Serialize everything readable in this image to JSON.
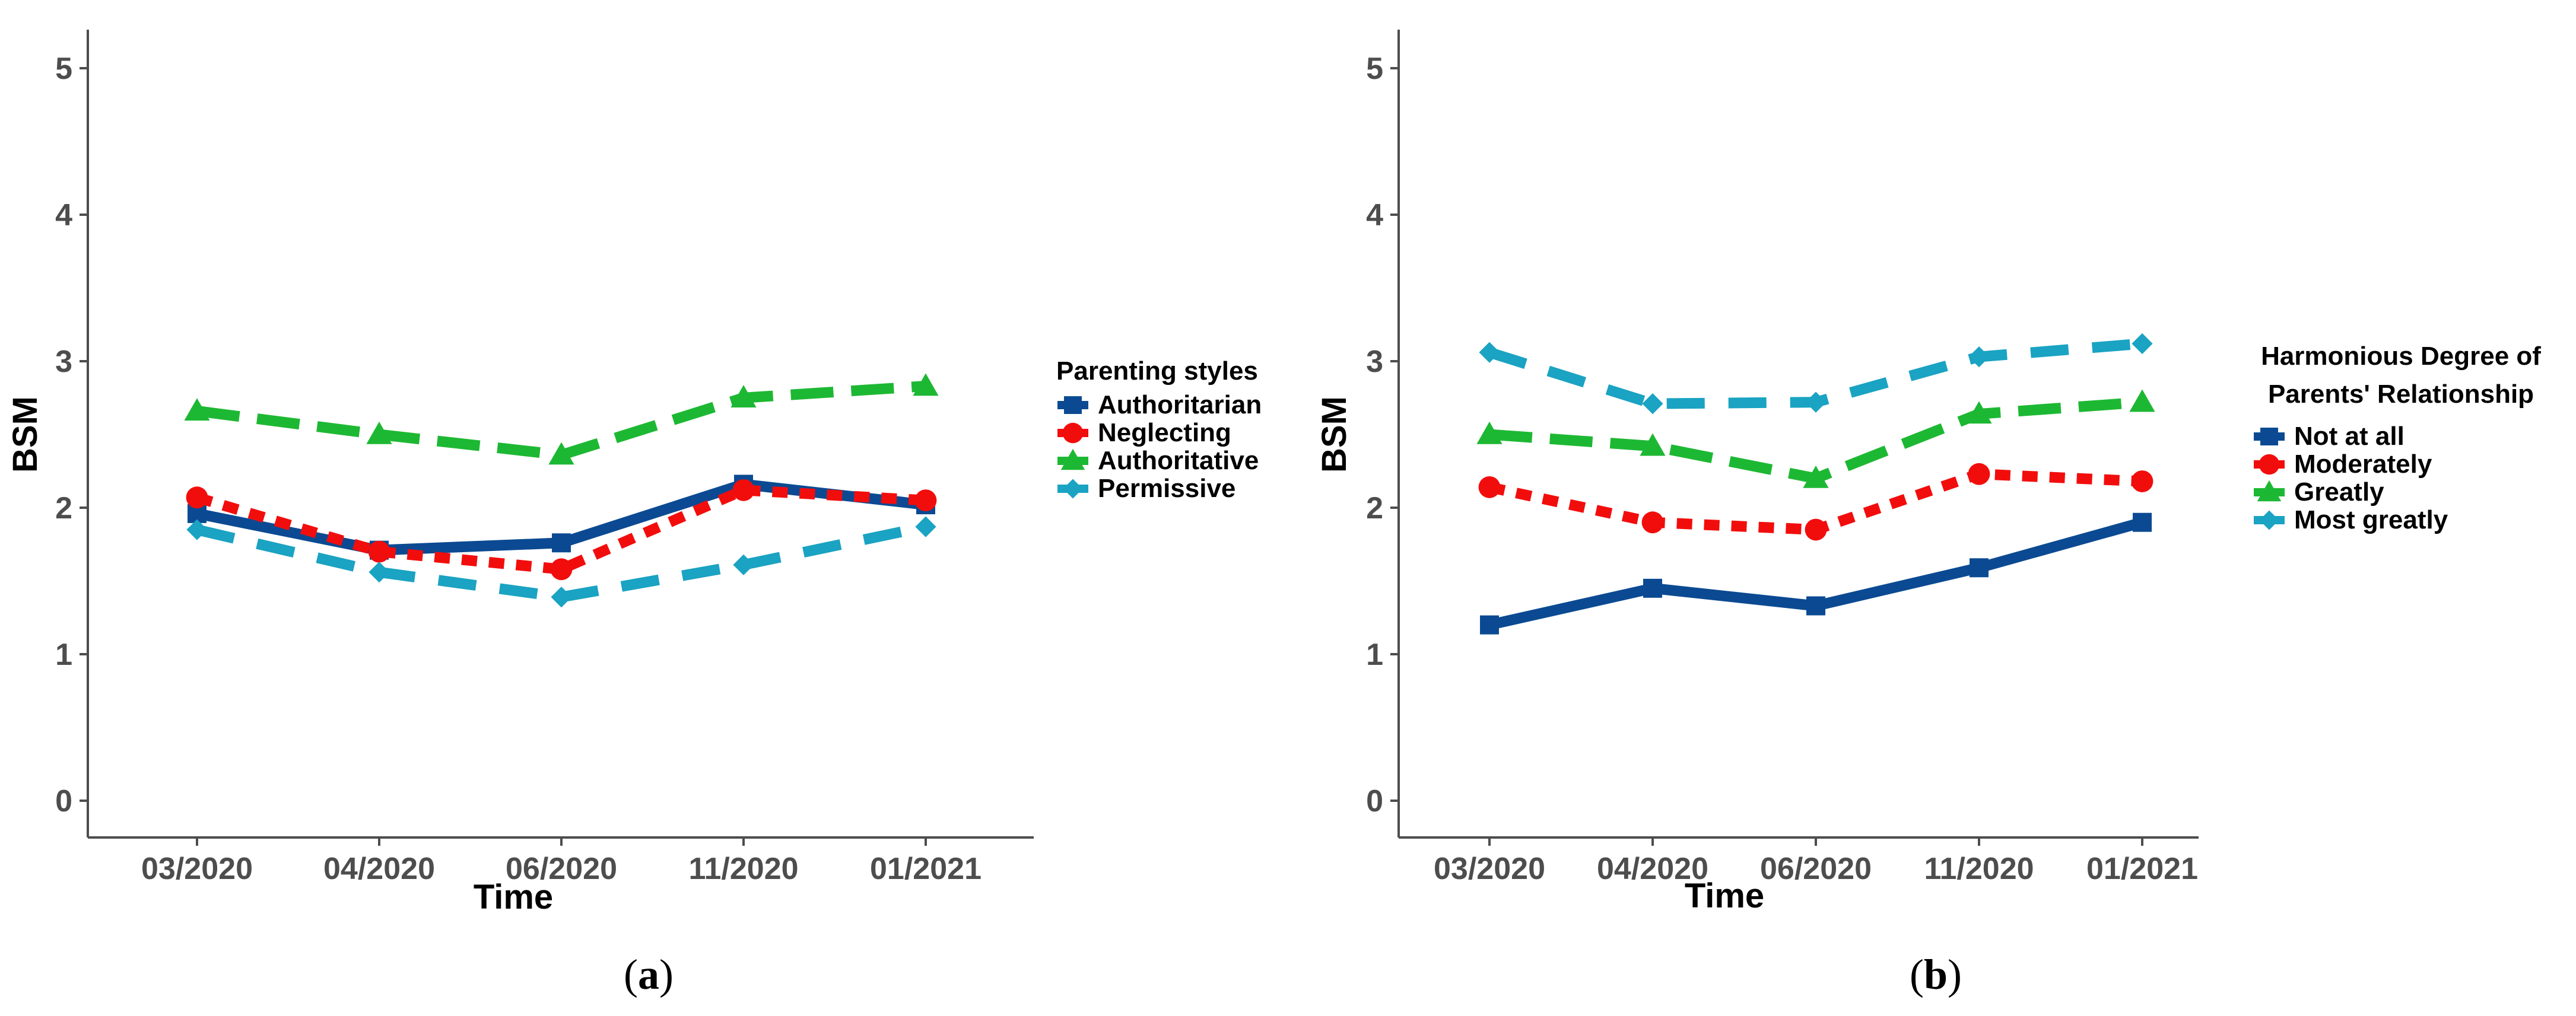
{
  "chart_data": [
    {
      "id": "a",
      "type": "line",
      "caption": "a",
      "xlabel": "Time",
      "ylabel": "BSM",
      "categories": [
        "03/2020",
        "04/2020",
        "06/2020",
        "11/2020",
        "01/2021"
      ],
      "yticks": [
        "0",
        "1",
        "2",
        "3",
        "4",
        "5"
      ],
      "ylim": [
        -0.25,
        5.25
      ],
      "legend": {
        "title_lines": [
          "Parenting styles"
        ],
        "placement": "right"
      },
      "series": [
        {
          "name": "Authoritarian",
          "color": "#0b4a92",
          "dash": "solid",
          "marker": "square",
          "values": [
            1.96,
            1.71,
            1.76,
            2.16,
            2.02
          ]
        },
        {
          "name": "Neglecting",
          "color": "#f20d0d",
          "dash": "dotted",
          "marker": "circle",
          "values": [
            2.07,
            1.7,
            1.58,
            2.12,
            2.05
          ]
        },
        {
          "name": "Authoritative",
          "color": "#1db833",
          "dash": "longdash",
          "marker": "triangle",
          "values": [
            2.66,
            2.5,
            2.36,
            2.75,
            2.83
          ]
        },
        {
          "name": "Permissive",
          "color": "#1aa3c2",
          "dash": "dashed",
          "marker": "arrow",
          "values": [
            1.85,
            1.56,
            1.39,
            1.61,
            1.87
          ]
        }
      ]
    },
    {
      "id": "b",
      "type": "line",
      "caption": "b",
      "xlabel": "Time",
      "ylabel": "BSM",
      "categories": [
        "03/2020",
        "04/2020",
        "06/2020",
        "11/2020",
        "01/2021"
      ],
      "yticks": [
        "0",
        "1",
        "2",
        "3",
        "4",
        "5"
      ],
      "ylim": [
        -0.25,
        5.25
      ],
      "legend": {
        "title_lines": [
          "Harmonious Degree of",
          "Parents' Relationship"
        ],
        "placement": "right"
      },
      "series": [
        {
          "name": "Not at all",
          "color": "#0b4a92",
          "dash": "solid",
          "marker": "square",
          "values": [
            1.2,
            1.45,
            1.33,
            1.59,
            1.9
          ]
        },
        {
          "name": "Moderately",
          "color": "#f20d0d",
          "dash": "dotted",
          "marker": "circle",
          "values": [
            2.14,
            1.9,
            1.85,
            2.23,
            2.18
          ]
        },
        {
          "name": "Greatly",
          "color": "#1db833",
          "dash": "longdash",
          "marker": "triangle",
          "values": [
            2.5,
            2.42,
            2.2,
            2.64,
            2.72
          ]
        },
        {
          "name": "Most greatly",
          "color": "#1aa3c2",
          "dash": "dashed",
          "marker": "arrow",
          "values": [
            3.06,
            2.71,
            2.72,
            3.03,
            3.12
          ]
        }
      ]
    }
  ]
}
